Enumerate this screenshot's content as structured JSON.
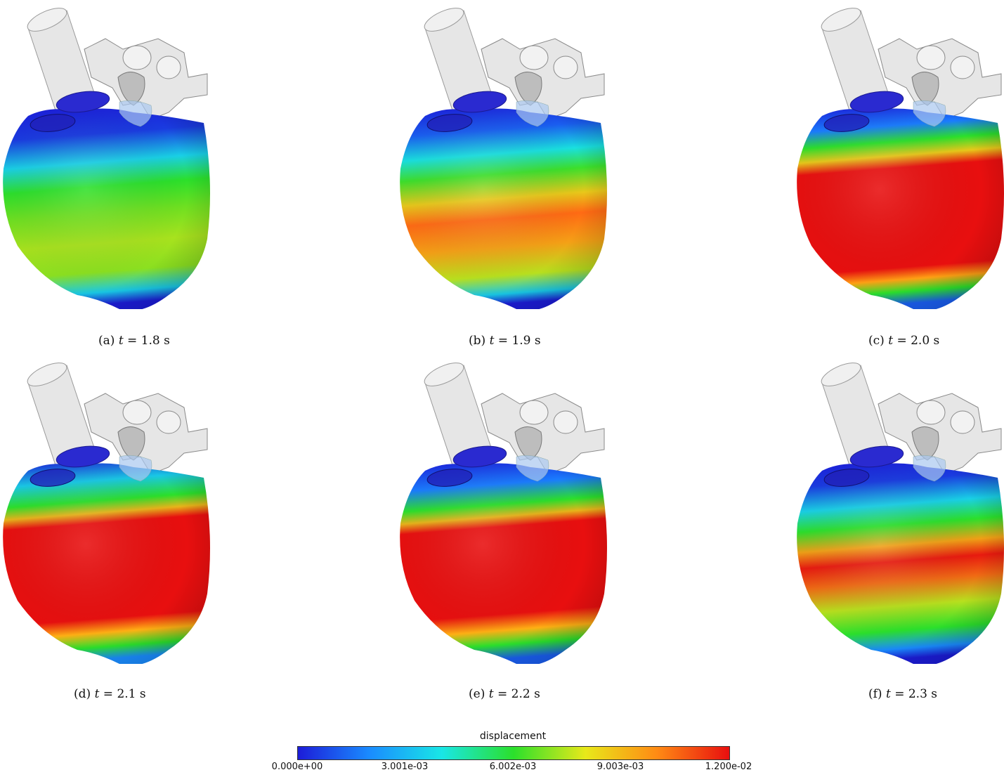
{
  "panels": [
    {
      "label": "(a)",
      "expr": "t = 1.8 s",
      "var": "t",
      "rest": " = 1.8 s",
      "pattern": "a"
    },
    {
      "label": "(b)",
      "expr": "t = 1.9 s",
      "var": "t",
      "rest": " = 1.9 s",
      "pattern": "b"
    },
    {
      "label": "(c)",
      "expr": "t = 2.0 s",
      "var": "t",
      "rest": " = 2.0 s",
      "pattern": "c"
    },
    {
      "label": "(d)",
      "expr": "t = 2.1 s",
      "var": "t",
      "rest": " = 2.1 s",
      "pattern": "d"
    },
    {
      "label": "(e)",
      "expr": "t = 2.2 s",
      "var": "t",
      "rest": " = 2.2 s",
      "pattern": "e"
    },
    {
      "label": "(f)",
      "expr": "t = 2.3 s",
      "var": "t",
      "rest": " = 2.3 s",
      "pattern": "f"
    }
  ],
  "colorbar": {
    "title": "displacement",
    "ticks": [
      "0.000e+00",
      "3.001e-03",
      "6.002e-03",
      "9.003e-03",
      "1.200e-02"
    ],
    "colors": [
      "#1c1cd8",
      "#1a8cff",
      "#19e6e6",
      "#2be02b",
      "#e8e81a",
      "#ff8a14",
      "#e80f0f"
    ]
  }
}
